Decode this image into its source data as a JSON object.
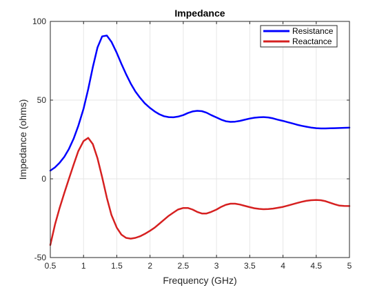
{
  "chart_data": {
    "type": "line",
    "title": "Impedance",
    "xlabel": "Frequency (GHz)",
    "ylabel": "Impedance (ohms)",
    "xlim": [
      0.5,
      5
    ],
    "ylim": [
      -50,
      100
    ],
    "xticks": [
      0.5,
      1,
      1.5,
      2,
      2.5,
      3,
      3.5,
      4,
      4.5,
      5
    ],
    "xtick_labels": [
      "0.5",
      "1",
      "1.5",
      "2",
      "2.5",
      "3",
      "3.5",
      "4",
      "4.5",
      "5"
    ],
    "yticks": [
      -50,
      0,
      50,
      100
    ],
    "ytick_labels": [
      "-50",
      "0",
      "50",
      "100"
    ],
    "grid": true,
    "legend_position": "top-right",
    "series": [
      {
        "name": "Resistance",
        "color": "#0000ff",
        "x": [
          0.5,
          0.57,
          0.64,
          0.71,
          0.78,
          0.85,
          0.92,
          1.0,
          1.07,
          1.14,
          1.21,
          1.28,
          1.35,
          1.42,
          1.5,
          1.57,
          1.64,
          1.71,
          1.78,
          1.85,
          1.92,
          2.0,
          2.07,
          2.14,
          2.21,
          2.28,
          2.35,
          2.42,
          2.5,
          2.57,
          2.64,
          2.71,
          2.78,
          2.85,
          2.92,
          3.0,
          3.07,
          3.14,
          3.21,
          3.28,
          3.35,
          3.42,
          3.5,
          3.57,
          3.64,
          3.71,
          3.78,
          3.85,
          3.92,
          4.0,
          4.07,
          4.14,
          4.21,
          4.28,
          4.35,
          4.42,
          4.5,
          4.57,
          4.64,
          4.71,
          4.78,
          4.85,
          4.92,
          5.0
        ],
        "y": [
          5.2,
          7.3,
          10.2,
          14.0,
          19.0,
          25.5,
          33.5,
          44.5,
          57.0,
          71.0,
          83.5,
          90.5,
          91.0,
          87.0,
          80.0,
          73.0,
          66.5,
          60.5,
          55.5,
          51.5,
          48.0,
          45.0,
          42.8,
          41.0,
          39.8,
          39.2,
          39.1,
          39.5,
          40.5,
          41.8,
          42.8,
          43.2,
          43.0,
          42.0,
          40.5,
          39.0,
          37.6,
          36.6,
          36.2,
          36.3,
          36.8,
          37.5,
          38.3,
          38.8,
          39.1,
          39.2,
          39.0,
          38.4,
          37.6,
          36.8,
          36.0,
          35.2,
          34.4,
          33.7,
          33.1,
          32.6,
          32.2,
          32.0,
          32.0,
          32.1,
          32.2,
          32.3,
          32.4,
          32.5
        ],
        "legend": "Resistance"
      },
      {
        "name": "Reactance",
        "color": "#d62020",
        "x": [
          0.5,
          0.57,
          0.64,
          0.71,
          0.78,
          0.85,
          0.92,
          1.0,
          1.07,
          1.14,
          1.21,
          1.28,
          1.35,
          1.42,
          1.5,
          1.57,
          1.64,
          1.71,
          1.78,
          1.85,
          1.92,
          2.0,
          2.07,
          2.14,
          2.21,
          2.28,
          2.35,
          2.42,
          2.5,
          2.57,
          2.64,
          2.71,
          2.78,
          2.85,
          2.92,
          3.0,
          3.07,
          3.14,
          3.21,
          3.28,
          3.35,
          3.42,
          3.5,
          3.57,
          3.64,
          3.71,
          3.78,
          3.85,
          3.92,
          4.0,
          4.07,
          4.14,
          4.21,
          4.28,
          4.35,
          4.42,
          4.5,
          4.57,
          4.64,
          4.71,
          4.78,
          4.85,
          4.92,
          5.0
        ],
        "y": [
          -42.0,
          -29.0,
          -18.5,
          -9.0,
          0.0,
          9.0,
          17.5,
          24.0,
          26.0,
          22.0,
          13.0,
          1.0,
          -12.0,
          -23.0,
          -31.0,
          -35.5,
          -37.5,
          -38.0,
          -37.5,
          -36.5,
          -35.0,
          -33.0,
          -31.0,
          -28.5,
          -26.0,
          -23.5,
          -21.5,
          -19.5,
          -18.5,
          -18.5,
          -19.5,
          -21.0,
          -22.0,
          -22.0,
          -21.0,
          -19.5,
          -17.8,
          -16.5,
          -15.8,
          -15.8,
          -16.3,
          -17.1,
          -18.0,
          -18.7,
          -19.1,
          -19.3,
          -19.2,
          -18.9,
          -18.4,
          -17.8,
          -17.0,
          -16.2,
          -15.4,
          -14.6,
          -14.0,
          -13.6,
          -13.4,
          -13.6,
          -14.2,
          -15.2,
          -16.2,
          -17.0,
          -17.2,
          -17.3
        ],
        "legend": "Reactance"
      }
    ]
  }
}
